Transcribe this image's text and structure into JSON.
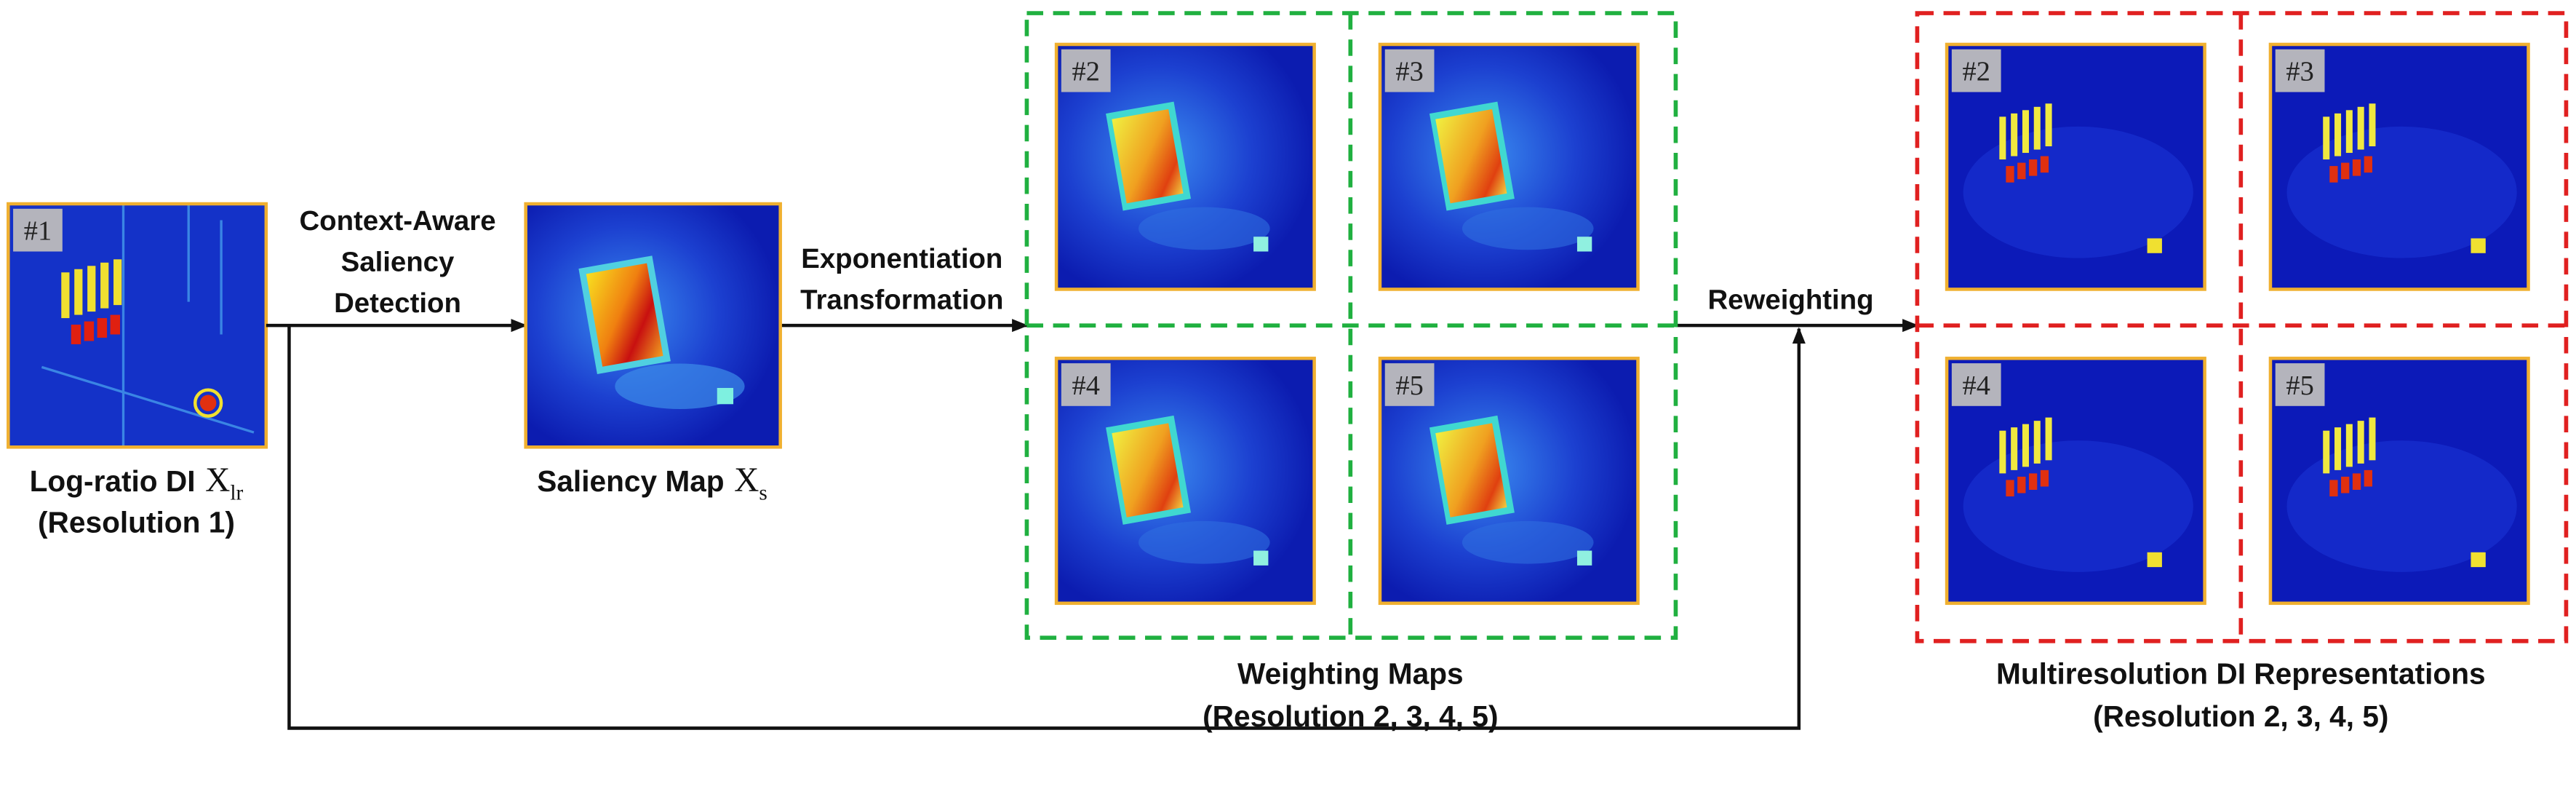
{
  "input": {
    "tag": "#1",
    "label": "Log-ratio DI",
    "symbol": "X",
    "subscript": "lr",
    "sublabel": "(Resolution 1)"
  },
  "step1": {
    "lines": [
      "Context-Aware",
      "Saliency",
      "Detection"
    ]
  },
  "saliency": {
    "label": "Saliency Map",
    "symbol": "X",
    "subscript": "s"
  },
  "step2": {
    "lines": [
      "Exponentiation",
      "Transformation"
    ]
  },
  "weighting_maps": {
    "tags": [
      "#2",
      "#3",
      "#4",
      "#5"
    ],
    "title": "Weighting Maps",
    "subtitle": "(Resolution 2, 3, 4, 5)"
  },
  "step3": {
    "label": "Reweighting"
  },
  "multiresolution": {
    "tags": [
      "#2",
      "#3",
      "#4",
      "#5"
    ],
    "title": "Multiresolution DI Representations",
    "subtitle": "(Resolution 2, 3, 4, 5)"
  }
}
